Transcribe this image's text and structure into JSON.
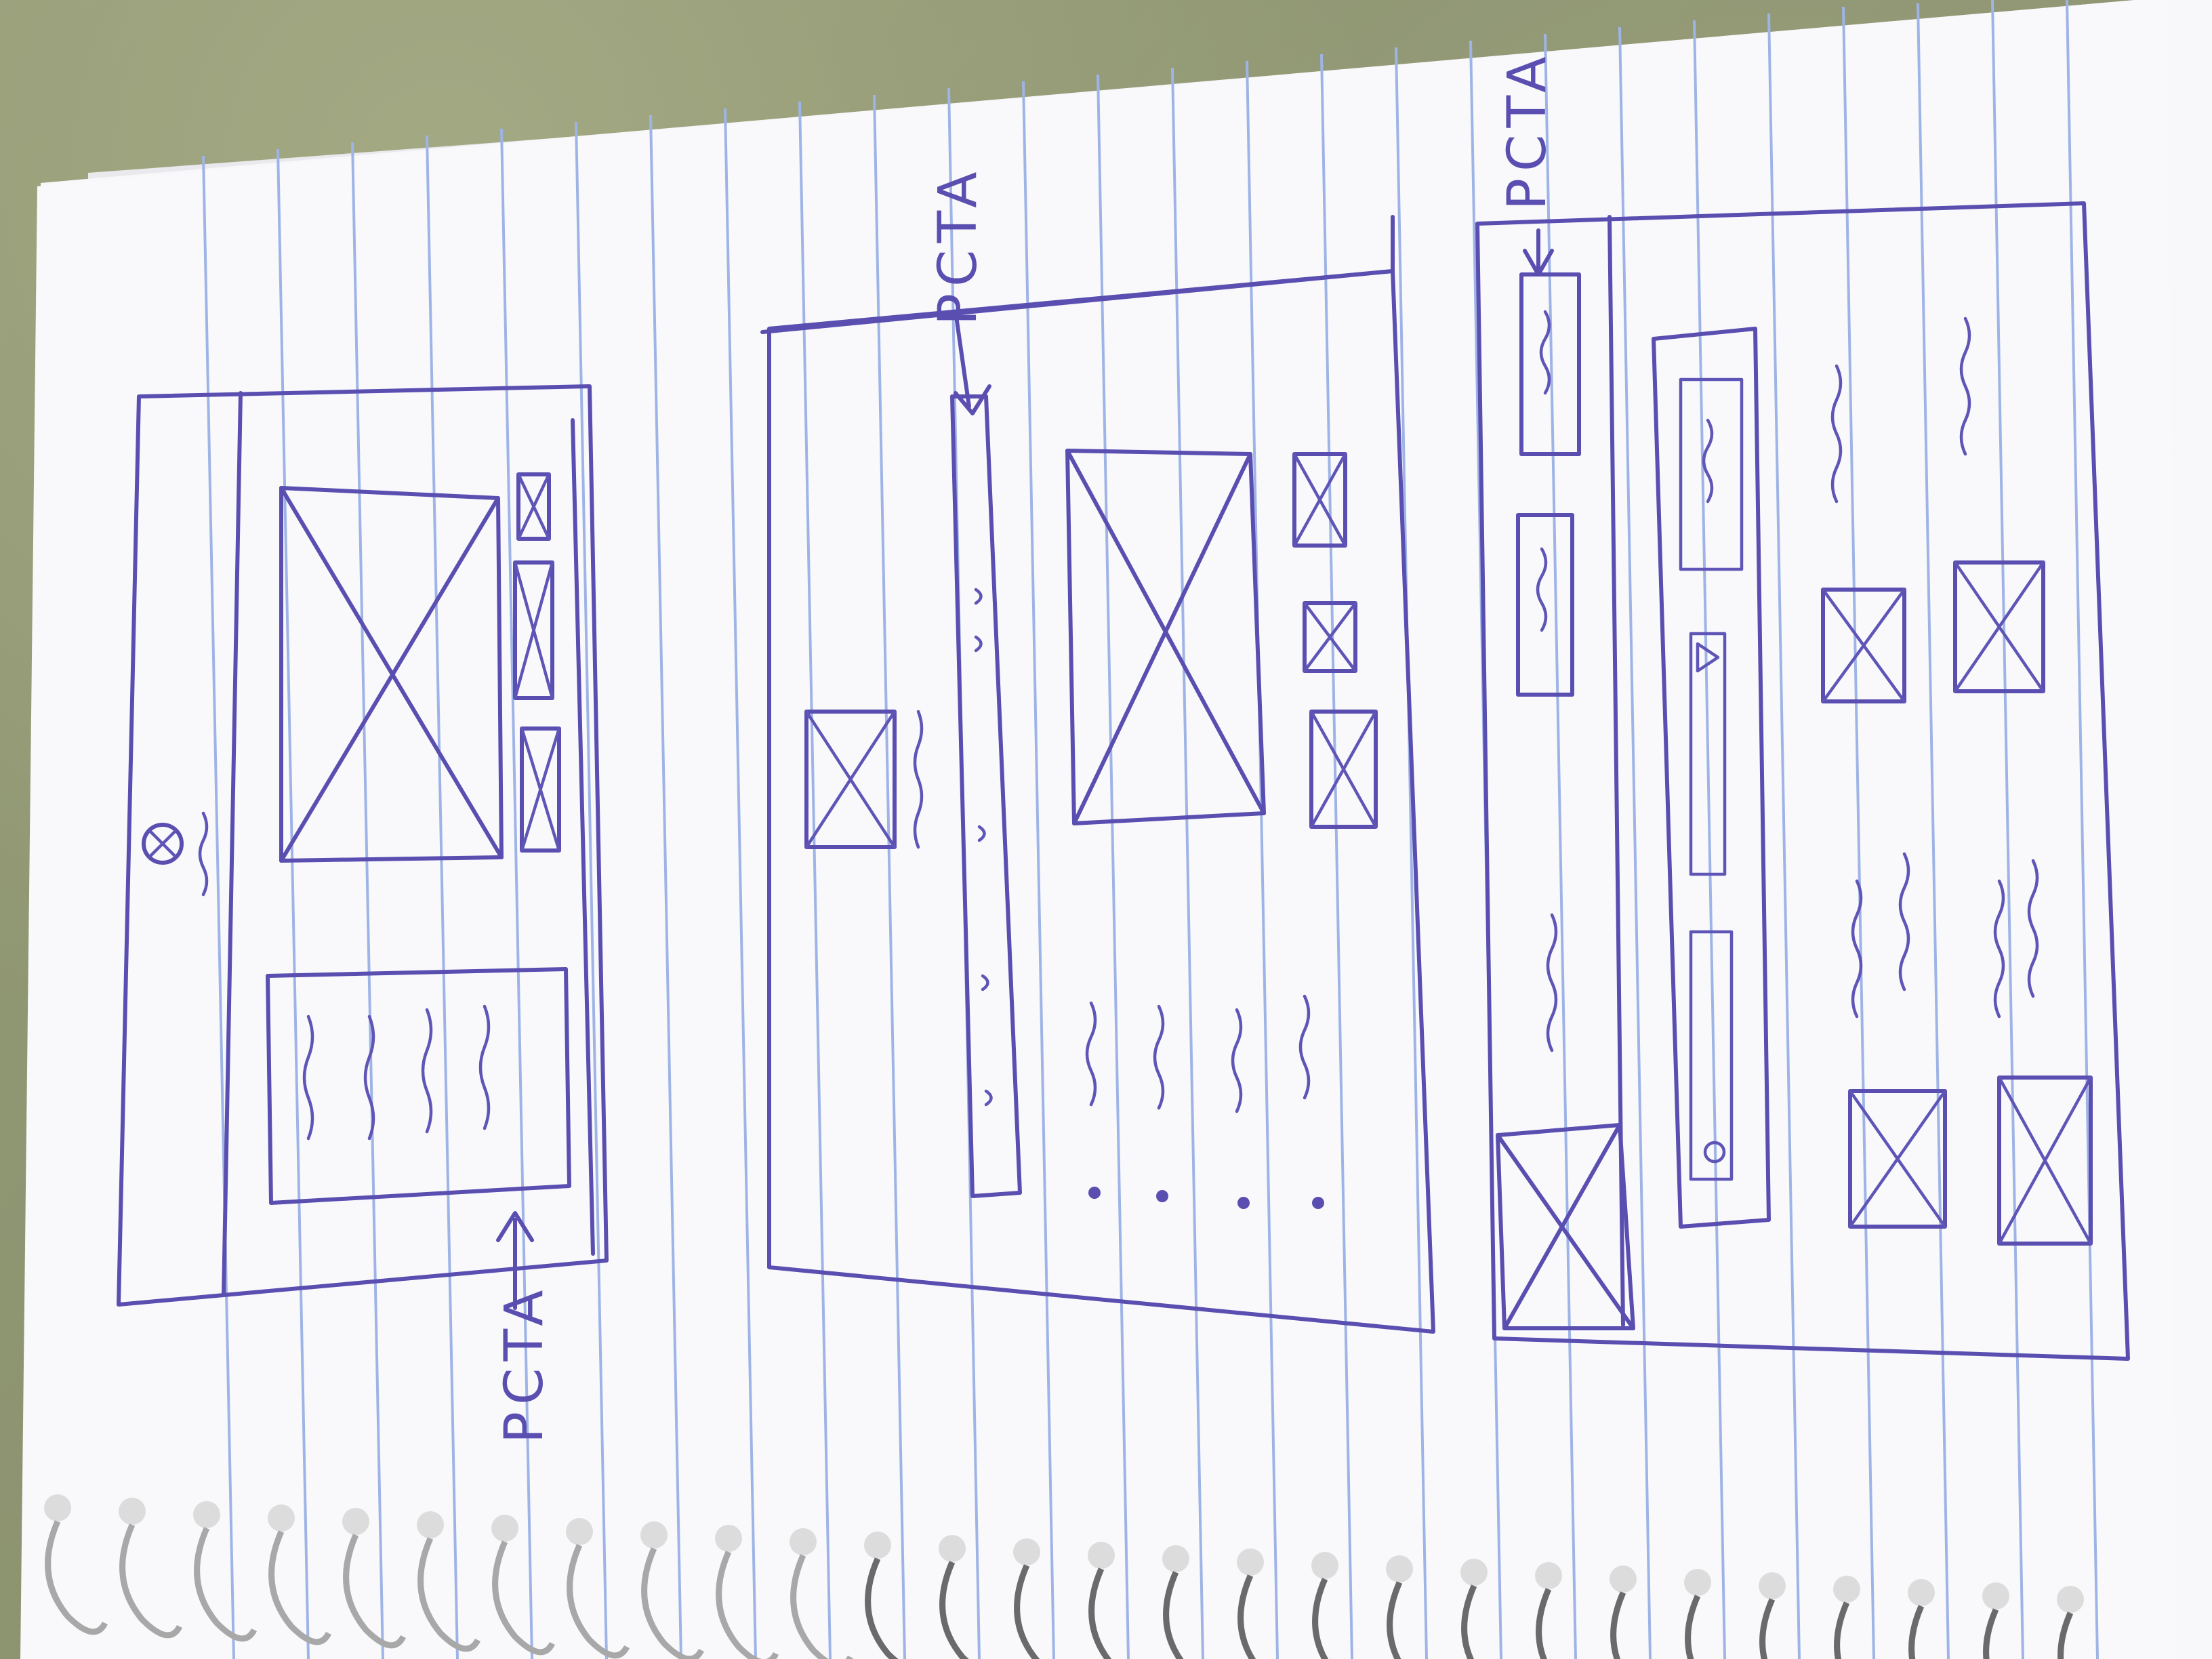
{
  "image": {
    "kind": "hand-drawn wireframe sketch on spiral-bound lined paper",
    "ink_color": "#5a4fb0",
    "paper_color": "#f7f7fb",
    "rule_color": "#9fb4e6"
  },
  "annotations": {
    "pcta_label": "PCTA"
  }
}
